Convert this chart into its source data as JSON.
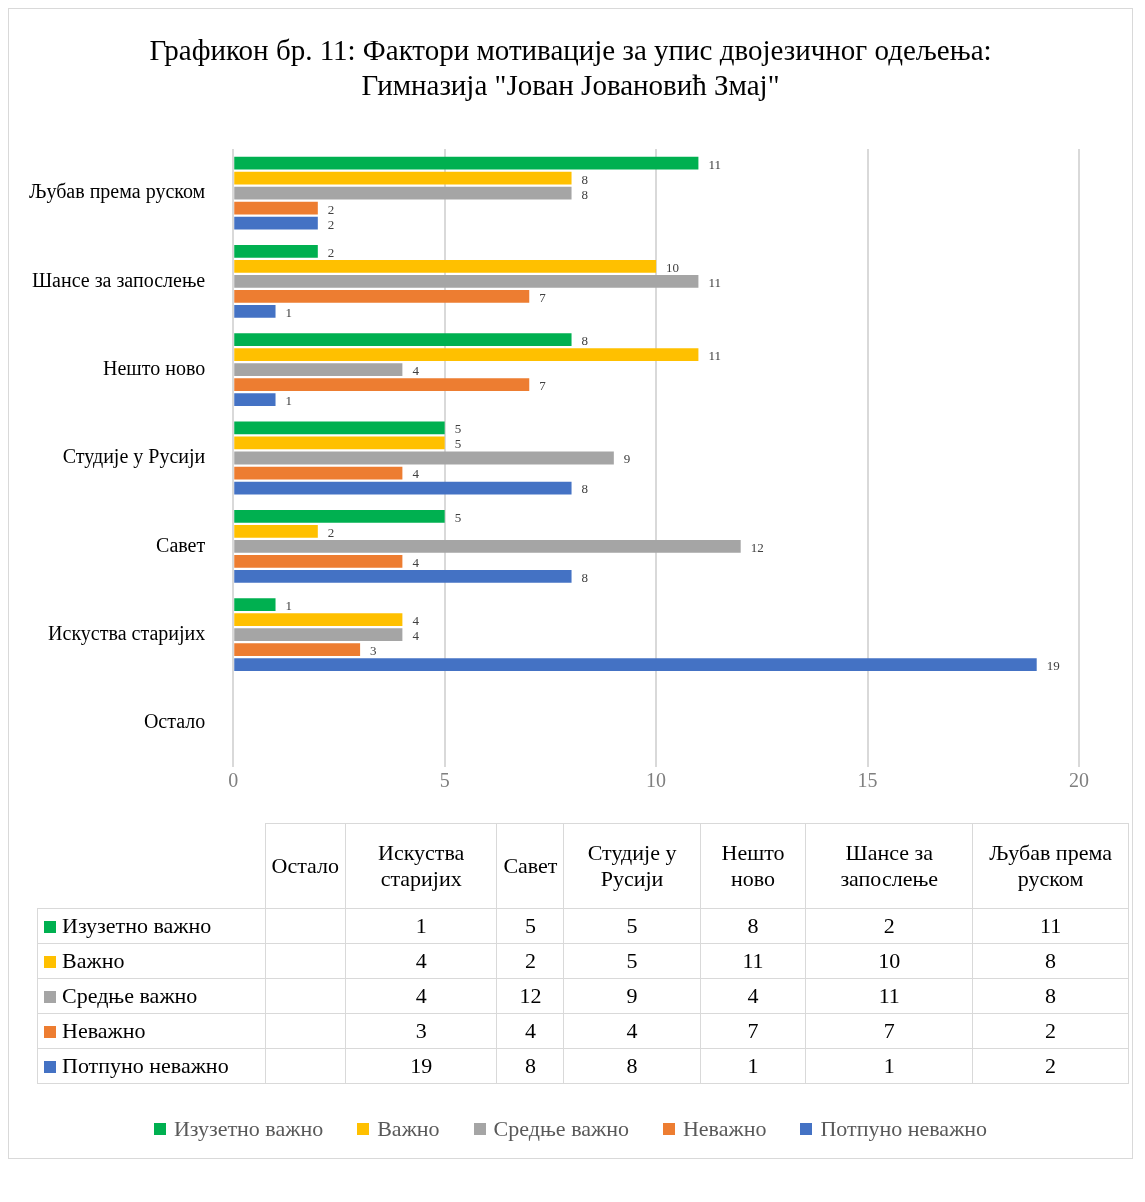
{
  "chart_data": [
    {
      "type": "bar",
      "orientation": "horizontal",
      "title": "Графикон бр. 11: Фактори мотивације за упис двојезичног одељења: Гимназија \"Јован Јовановић Змај\"",
      "categories": [
        "Љубав према руском",
        "Шансе за запослење",
        "Нешто ново",
        "Студије у Русији",
        "Савет",
        "Искуства старијих",
        "Остало"
      ],
      "series": [
        {
          "name": "Изузетно важно",
          "color": "#00b050",
          "values": [
            11,
            2,
            8,
            5,
            5,
            1,
            null
          ]
        },
        {
          "name": "Важно",
          "color": "#ffc000",
          "values": [
            8,
            10,
            11,
            5,
            2,
            4,
            null
          ]
        },
        {
          "name": "Средње важно",
          "color": "#a5a5a5",
          "values": [
            8,
            11,
            4,
            9,
            12,
            4,
            null
          ]
        },
        {
          "name": "Неважно",
          "color": "#ed7d31",
          "values": [
            2,
            7,
            7,
            4,
            4,
            3,
            null
          ]
        },
        {
          "name": "Потпуно неважно",
          "color": "#4472c4",
          "values": [
            2,
            1,
            1,
            8,
            8,
            19,
            null
          ]
        }
      ],
      "xlim": [
        0,
        20
      ],
      "xticks": [
        0,
        5,
        10,
        15,
        20
      ],
      "grid": "x",
      "legend": "bottom",
      "data_labels": true
    },
    {
      "type": "other",
      "categories": [
        "Остало",
        "Искуства старијих",
        "Савет",
        "Студије у Русији",
        "Нешто ново",
        "Шансе за запослење",
        "Љубав према руском"
      ],
      "series": [
        {
          "name": "Изузетно важно",
          "color": "#00b050",
          "values": [
            null,
            1,
            5,
            5,
            8,
            2,
            11
          ]
        },
        {
          "name": "Важно",
          "color": "#ffc000",
          "values": [
            null,
            4,
            2,
            5,
            11,
            10,
            8
          ]
        },
        {
          "name": "Средње важно",
          "color": "#a5a5a5",
          "values": [
            null,
            4,
            12,
            9,
            4,
            11,
            8
          ]
        },
        {
          "name": "Неважно",
          "color": "#ed7d31",
          "values": [
            null,
            3,
            4,
            4,
            7,
            7,
            2
          ]
        },
        {
          "name": "Потпуно неважно",
          "color": "#4472c4",
          "values": [
            null,
            19,
            8,
            8,
            1,
            1,
            2
          ]
        }
      ],
      "data_labels": true
    }
  ]
}
